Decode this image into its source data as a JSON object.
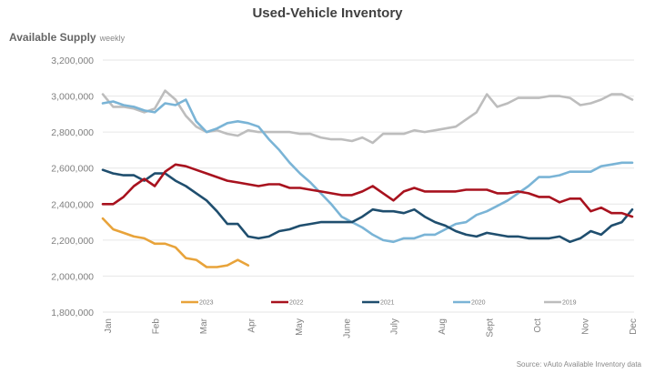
{
  "chart_data": {
    "type": "line",
    "title": "Used-Vehicle Inventory",
    "ylabel": "Available Supply",
    "ylabel_note": "weekly",
    "xlabel": "",
    "source": "Source: vAuto Available Inventory data",
    "ylim": [
      1800000,
      3200000
    ],
    "yticks": [
      3200000,
      3000000,
      2800000,
      2600000,
      2400000,
      2200000,
      2000000,
      1800000
    ],
    "ytick_labels": [
      "3,200,000",
      "3,000,000",
      "2,800,000",
      "2,600,000",
      "2,400,000",
      "2,200,000",
      "2,000,000",
      "1,800,000"
    ],
    "xtick_labels": [
      "Jan",
      "Feb",
      "Mar",
      "Apr",
      "May",
      "June",
      "July",
      "Aug",
      "Sept",
      "Oct",
      "Nov",
      "Dec"
    ],
    "x_unit": "week",
    "weeks_per_year": 52,
    "grid": true,
    "legend_position": "bottom-inside",
    "series": [
      {
        "name": "2023",
        "color": "#E8A33A",
        "values": [
          2320000,
          2260000,
          2240000,
          2220000,
          2210000,
          2180000,
          2180000,
          2160000,
          2100000,
          2090000,
          2050000,
          2050000,
          2060000,
          2090000,
          2060000
        ]
      },
      {
        "name": "2022",
        "color": "#A8121E",
        "values": [
          2400000,
          2400000,
          2440000,
          2500000,
          2540000,
          2500000,
          2580000,
          2620000,
          2610000,
          2590000,
          2570000,
          2550000,
          2530000,
          2520000,
          2510000,
          2500000,
          2510000,
          2510000,
          2490000,
          2490000,
          2480000,
          2470000,
          2460000,
          2450000,
          2450000,
          2470000,
          2500000,
          2460000,
          2420000,
          2470000,
          2490000,
          2470000,
          2470000,
          2470000,
          2470000,
          2480000,
          2480000,
          2480000,
          2460000,
          2460000,
          2470000,
          2460000,
          2440000,
          2440000,
          2410000,
          2430000,
          2430000,
          2360000,
          2380000,
          2350000,
          2350000,
          2330000
        ]
      },
      {
        "name": "2021",
        "color": "#1F4E6E",
        "values": [
          2590000,
          2570000,
          2560000,
          2560000,
          2530000,
          2570000,
          2570000,
          2530000,
          2500000,
          2460000,
          2420000,
          2360000,
          2290000,
          2290000,
          2220000,
          2210000,
          2220000,
          2250000,
          2260000,
          2280000,
          2290000,
          2300000,
          2300000,
          2300000,
          2300000,
          2330000,
          2370000,
          2360000,
          2360000,
          2350000,
          2370000,
          2330000,
          2300000,
          2280000,
          2250000,
          2230000,
          2220000,
          2240000,
          2230000,
          2220000,
          2220000,
          2210000,
          2210000,
          2210000,
          2220000,
          2190000,
          2210000,
          2250000,
          2230000,
          2280000,
          2300000,
          2370000
        ]
      },
      {
        "name": "2020",
        "color": "#7AB4D6",
        "values": [
          2960000,
          2970000,
          2950000,
          2940000,
          2920000,
          2910000,
          2960000,
          2950000,
          2980000,
          2860000,
          2800000,
          2820000,
          2850000,
          2860000,
          2850000,
          2830000,
          2760000,
          2700000,
          2630000,
          2570000,
          2520000,
          2460000,
          2400000,
          2330000,
          2300000,
          2270000,
          2230000,
          2200000,
          2190000,
          2210000,
          2210000,
          2230000,
          2230000,
          2260000,
          2290000,
          2300000,
          2340000,
          2360000,
          2390000,
          2420000,
          2460000,
          2500000,
          2550000,
          2550000,
          2560000,
          2580000,
          2580000,
          2580000,
          2610000,
          2620000,
          2630000,
          2630000
        ]
      },
      {
        "name": "2019",
        "color": "#BDBDBD",
        "values": [
          3010000,
          2940000,
          2940000,
          2930000,
          2910000,
          2930000,
          3030000,
          2980000,
          2890000,
          2830000,
          2800000,
          2810000,
          2790000,
          2780000,
          2810000,
          2800000,
          2800000,
          2800000,
          2800000,
          2790000,
          2790000,
          2770000,
          2760000,
          2760000,
          2750000,
          2770000,
          2740000,
          2790000,
          2790000,
          2790000,
          2810000,
          2800000,
          2810000,
          2820000,
          2830000,
          2870000,
          2910000,
          3010000,
          2940000,
          2960000,
          2990000,
          2990000,
          2990000,
          3000000,
          3000000,
          2990000,
          2950000,
          2960000,
          2980000,
          3010000,
          3010000,
          2980000
        ]
      }
    ]
  }
}
